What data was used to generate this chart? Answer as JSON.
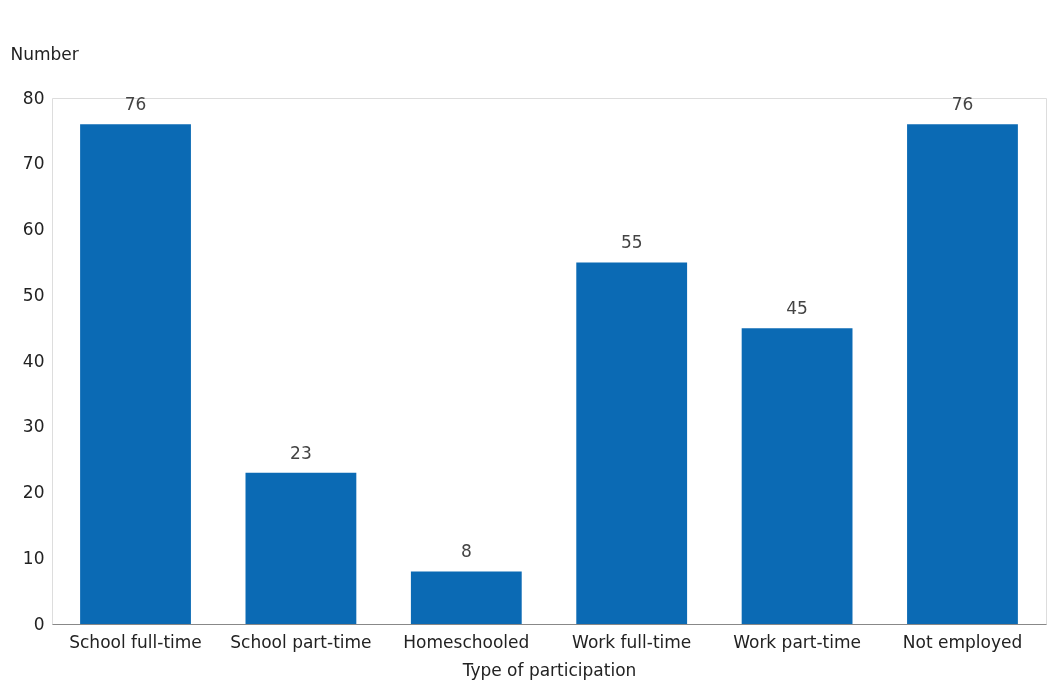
{
  "chart_data": {
    "type": "bar",
    "xlabel": "Type of participation",
    "ylabel": "Number",
    "categories": [
      "School full-time",
      "School part-time",
      "Homeschooled",
      "Work full-time",
      "Work part-time",
      "Not employed"
    ],
    "values": [
      76,
      23,
      8,
      55,
      45,
      76
    ],
    "color": "#0b6ab4",
    "ylim": [
      0,
      80
    ],
    "yticks": [
      0,
      10,
      20,
      30,
      40,
      50,
      60,
      70,
      80
    ],
    "data_labels": true
  }
}
